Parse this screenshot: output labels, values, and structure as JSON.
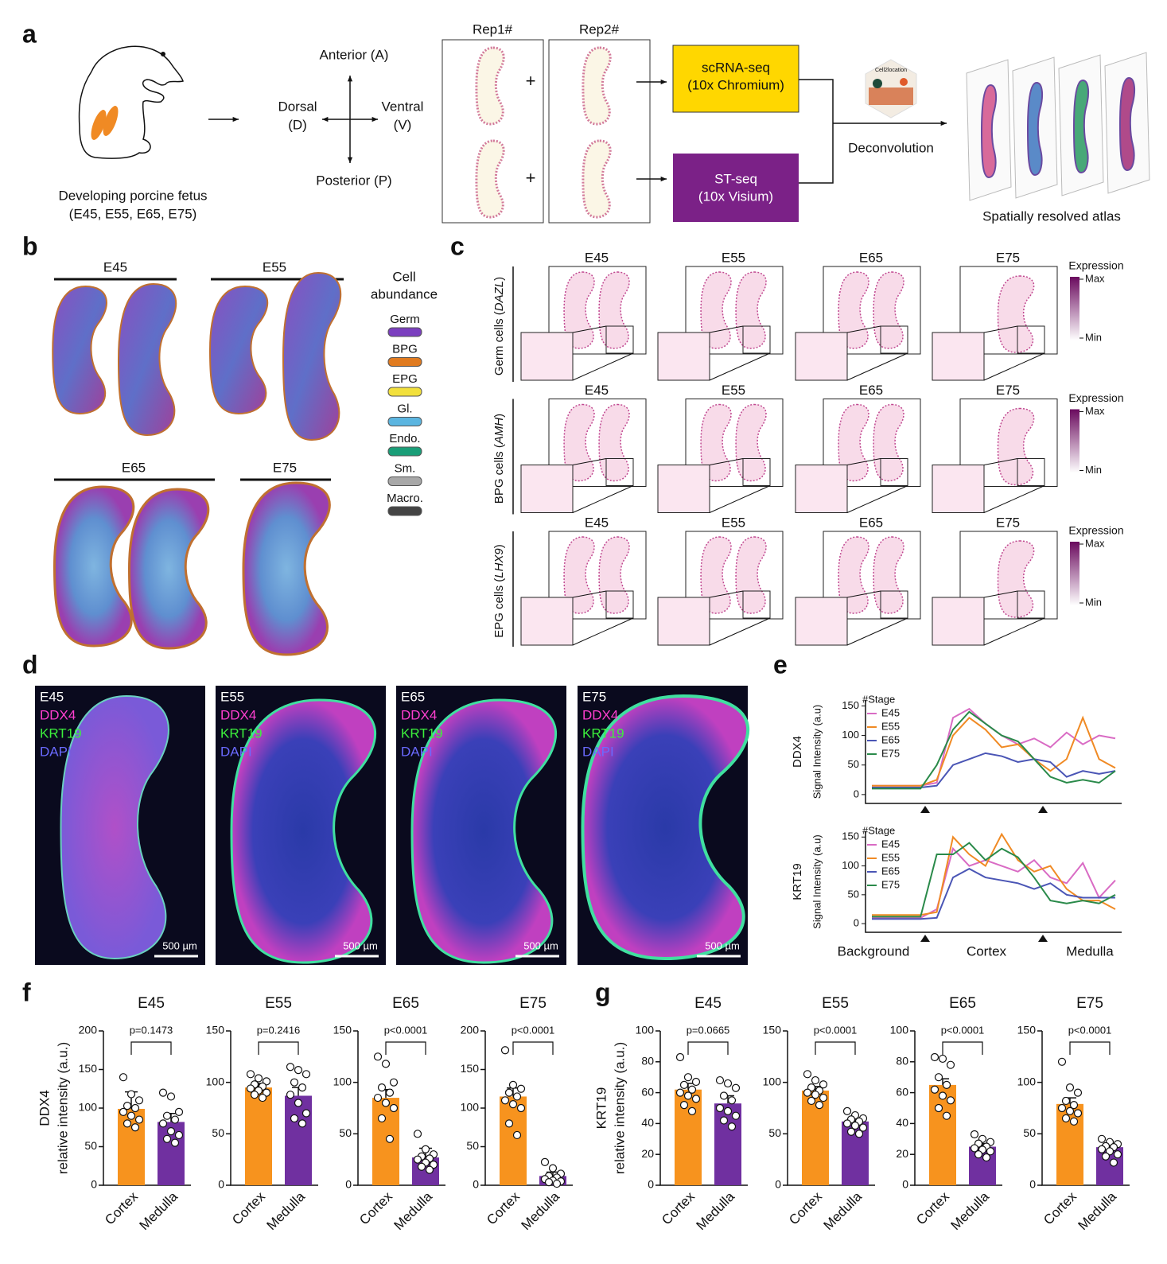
{
  "panel_labels": [
    "a",
    "b",
    "c",
    "d",
    "e",
    "f",
    "g"
  ],
  "stages": [
    "E45",
    "E55",
    "E65",
    "E75"
  ],
  "panel_a": {
    "fetus_caption": [
      "Developing porcine fetus",
      "(E45, E55, E65, E75)"
    ],
    "anterior": "Anterior (A)",
    "posterior": "Posterior (P)",
    "dorsal": [
      "Dorsal",
      "(D)"
    ],
    "ventral": [
      "Ventral",
      "(V)"
    ],
    "replicates": [
      "Rep1#",
      "Rep2#"
    ],
    "plus": "+",
    "scrna": [
      "scRNA-seq",
      "(10x Chromium)"
    ],
    "st": [
      "ST-seq",
      "(10x Visium)"
    ],
    "tool": "Cell2location",
    "deconvolution": "Deconvolution",
    "atlas": "Spatially resolved atlas"
  },
  "panel_b": {
    "legend_title": [
      "Cell",
      "abundance"
    ],
    "cell_types": [
      {
        "name": "Germ",
        "color": "#7b3fbf"
      },
      {
        "name": "BPG",
        "color": "#e07b20"
      },
      {
        "name": "EPG",
        "color": "#f2e03c"
      },
      {
        "name": "Gl.",
        "color": "#5bb5e0"
      },
      {
        "name": "Endo.",
        "color": "#1a9e78"
      },
      {
        "name": "Sm.",
        "color": "#a8a8a8"
      },
      {
        "name": "Macro.",
        "color": "#444444"
      }
    ]
  },
  "panel_c": {
    "rows": [
      {
        "prefix": "Germ cells (",
        "gene": "DAZL",
        "suffix": ")"
      },
      {
        "prefix": "BPG cells (",
        "gene": "AMH",
        "suffix": ")"
      },
      {
        "prefix": "EPG cells (",
        "gene": "LHX9",
        "suffix": ")"
      }
    ],
    "legend": {
      "title": "Expression",
      "max": "Max",
      "min": "Min"
    }
  },
  "panel_d": {
    "markers": [
      {
        "name": "DDX4",
        "color": "#ff3fd0"
      },
      {
        "name": "KRT19",
        "color": "#3cf03c"
      },
      {
        "name": "DAPI",
        "color": "#6a6aff"
      }
    ],
    "scale_bar": "500 µm"
  },
  "chart_data": [
    {
      "type": "line",
      "gene_label": "DDX4",
      "y_label": "Signal Intensity (a.u)",
      "legend_title": "#Stage",
      "ylim": [
        -15,
        160
      ],
      "yticks": [
        0,
        50,
        100,
        150
      ],
      "series": [
        {
          "name": "E45",
          "color": "#d96bc4",
          "values": [
            15,
            15,
            15,
            15,
            20,
            130,
            145,
            120,
            100,
            85,
            95,
            80,
            105,
            85,
            100,
            95
          ]
        },
        {
          "name": "E55",
          "color": "#f08a24",
          "values": [
            15,
            15,
            15,
            15,
            25,
            100,
            130,
            110,
            80,
            85,
            60,
            40,
            60,
            130,
            60,
            45
          ]
        },
        {
          "name": "E65",
          "color": "#4a55b5",
          "values": [
            12,
            12,
            12,
            12,
            15,
            50,
            60,
            70,
            65,
            55,
            60,
            55,
            30,
            40,
            35,
            40
          ]
        },
        {
          "name": "E75",
          "color": "#2a8a4a",
          "values": [
            10,
            10,
            10,
            10,
            50,
            110,
            140,
            120,
            100,
            90,
            60,
            30,
            20,
            25,
            20,
            40
          ]
        }
      ]
    },
    {
      "type": "line",
      "gene_label": "KRT19",
      "y_label": "Signal Intensity (a.u)",
      "legend_title": "#Stage",
      "ylim": [
        -15,
        160
      ],
      "yticks": [
        0,
        50,
        100,
        150
      ],
      "region_labels": [
        "Background",
        "Cortex",
        "Medulla"
      ],
      "series": [
        {
          "name": "E45",
          "color": "#d96bc4",
          "values": [
            10,
            10,
            10,
            10,
            25,
            130,
            100,
            110,
            100,
            90,
            110,
            80,
            70,
            105,
            45,
            75
          ]
        },
        {
          "name": "E55",
          "color": "#f08a24",
          "values": [
            15,
            15,
            15,
            15,
            20,
            150,
            120,
            100,
            155,
            110,
            90,
            100,
            60,
            40,
            40,
            25
          ]
        },
        {
          "name": "E65",
          "color": "#4a55b5",
          "values": [
            8,
            8,
            8,
            8,
            10,
            80,
            95,
            80,
            75,
            70,
            60,
            70,
            50,
            45,
            45,
            45
          ]
        },
        {
          "name": "E75",
          "color": "#2a8a4a",
          "values": [
            12,
            12,
            12,
            12,
            120,
            120,
            140,
            110,
            130,
            115,
            80,
            40,
            35,
            40,
            35,
            50
          ]
        }
      ]
    },
    {
      "type": "bar",
      "title": "E45",
      "y_label": [
        "DDX4",
        "relative intensity (a.u.)"
      ],
      "categories": [
        "Cortex",
        "Medulla"
      ],
      "colors": [
        "#f7931e",
        "#7030a0"
      ],
      "values": [
        99,
        82
      ],
      "errors": [
        22,
        11
      ],
      "points": [
        [
          140,
          118,
          110,
          103,
          100,
          95,
          90,
          85,
          80,
          75
        ],
        [
          120,
          115,
          95,
          90,
          85,
          80,
          70,
          65,
          60,
          55
        ]
      ],
      "p_label": "p=0.1473",
      "ylim": [
        0,
        200
      ],
      "yticks": [
        0,
        50,
        100,
        150,
        200
      ]
    },
    {
      "type": "bar",
      "title": "E55",
      "categories": [
        "Cortex",
        "Medulla"
      ],
      "colors": [
        "#f7931e",
        "#7030a0"
      ],
      "values": [
        95,
        87
      ],
      "errors": [
        4,
        8
      ],
      "points": [
        [
          108,
          104,
          101,
          98,
          96,
          94,
          92,
          90,
          88,
          85
        ],
        [
          115,
          112,
          108,
          100,
          95,
          88,
          80,
          70,
          65,
          60
        ]
      ],
      "p_label": "p=0.2416",
      "ylim": [
        0,
        150
      ],
      "yticks": [
        0,
        50,
        100,
        150
      ]
    },
    {
      "type": "bar",
      "title": "E65",
      "categories": [
        "Cortex",
        "Medulla"
      ],
      "colors": [
        "#f7931e",
        "#7030a0"
      ],
      "values": [
        85,
        27
      ],
      "errors": [
        8,
        9
      ],
      "points": [
        [
          125,
          118,
          100,
          95,
          90,
          85,
          80,
          75,
          65,
          45
        ],
        [
          50,
          35,
          30,
          28,
          26,
          25,
          22,
          20,
          18,
          15
        ]
      ],
      "p_label": "p<0.0001",
      "ylim": [
        0,
        150
      ],
      "yticks": [
        0,
        50,
        100,
        150
      ]
    },
    {
      "type": "bar",
      "title": "E75",
      "categories": [
        "Cortex",
        "Medulla"
      ],
      "colors": [
        "#f7931e",
        "#7030a0"
      ],
      "values": [
        115,
        12
      ],
      "errors": [
        11,
        5
      ],
      "points": [
        [
          175,
          130,
          125,
          120,
          115,
          110,
          105,
          100,
          80,
          65
        ],
        [
          30,
          22,
          15,
          12,
          10,
          8,
          6,
          5,
          4,
          2
        ]
      ],
      "p_label": "p<0.0001",
      "ylim": [
        0,
        200
      ],
      "yticks": [
        0,
        50,
        100,
        150,
        200
      ]
    },
    {
      "type": "bar",
      "title": "E45",
      "y_label": [
        "KRT19",
        "relative intensity (a.u.)"
      ],
      "categories": [
        "Cortex",
        "Medulla"
      ],
      "colors": [
        "#f7931e",
        "#7030a0"
      ],
      "values": [
        62,
        53
      ],
      "errors": [
        4,
        5
      ],
      "points": [
        [
          83,
          70,
          67,
          65,
          62,
          60,
          58,
          56,
          52,
          48
        ],
        [
          68,
          66,
          63,
          58,
          55,
          50,
          48,
          45,
          42,
          38
        ]
      ],
      "p_label": "p=0.0665",
      "ylim": [
        0,
        100
      ],
      "yticks": [
        0,
        20,
        40,
        60,
        80,
        100
      ]
    },
    {
      "type": "bar",
      "title": "E55",
      "categories": [
        "Cortex",
        "Medulla"
      ],
      "colors": [
        "#f7931e",
        "#7030a0"
      ],
      "values": [
        92,
        62
      ],
      "errors": [
        4,
        3
      ],
      "points": [
        [
          108,
          102,
          98,
          95,
          92,
          90,
          88,
          85,
          82,
          78
        ],
        [
          72,
          68,
          65,
          64,
          62,
          60,
          58,
          56,
          52,
          50
        ]
      ],
      "p_label": "p<0.0001",
      "ylim": [
        0,
        150
      ],
      "yticks": [
        0,
        50,
        100,
        150
      ]
    },
    {
      "type": "bar",
      "title": "E65",
      "categories": [
        "Cortex",
        "Medulla"
      ],
      "colors": [
        "#f7931e",
        "#7030a0"
      ],
      "values": [
        65,
        25
      ],
      "errors": [
        4,
        2
      ],
      "points": [
        [
          83,
          82,
          78,
          70,
          65,
          62,
          58,
          55,
          50,
          45
        ],
        [
          33,
          30,
          28,
          27,
          25,
          24,
          23,
          22,
          20,
          18
        ]
      ],
      "p_label": "p<0.0001",
      "ylim": [
        0,
        100
      ],
      "yticks": [
        0,
        20,
        40,
        60,
        80,
        100
      ]
    },
    {
      "type": "bar",
      "title": "E75",
      "categories": [
        "Cortex",
        "Medulla"
      ],
      "colors": [
        "#f7931e",
        "#7030a0"
      ],
      "values": [
        79,
        37
      ],
      "errors": [
        6,
        3
      ],
      "points": [
        [
          120,
          95,
          90,
          82,
          78,
          75,
          72,
          70,
          65,
          62
        ],
        [
          45,
          42,
          40,
          38,
          37,
          35,
          33,
          30,
          28,
          22
        ]
      ],
      "p_label": "p<0.0001",
      "ylim": [
        0,
        150
      ],
      "yticks": [
        0,
        50,
        100,
        150
      ]
    }
  ]
}
